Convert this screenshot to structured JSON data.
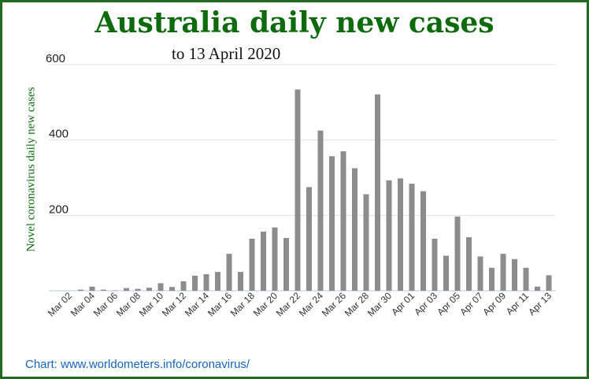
{
  "chart_data": {
    "type": "bar",
    "title": "Australia daily new cases",
    "subtitle": "to 13 April 2020",
    "xlabel": "",
    "ylabel": "Novel coronavirus daily new cases",
    "ylim": [
      0,
      600
    ],
    "yticks": [
      200,
      400,
      600
    ],
    "grid": true,
    "bar_color": "#8c8c8c",
    "categories": [
      "Mar 02",
      "Mar 03",
      "Mar 04",
      "Mar 05",
      "Mar 06",
      "Mar 07",
      "Mar 08",
      "Mar 09",
      "Mar 10",
      "Mar 11",
      "Mar 12",
      "Mar 13",
      "Mar 14",
      "Mar 15",
      "Mar 16",
      "Mar 17",
      "Mar 18",
      "Mar 19",
      "Mar 20",
      "Mar 21",
      "Mar 22",
      "Mar 23",
      "Mar 24",
      "Mar 25",
      "Mar 26",
      "Mar 27",
      "Mar 28",
      "Mar 29",
      "Mar 30",
      "Mar 31",
      "Apr 01",
      "Apr 02",
      "Apr 03",
      "Apr 04",
      "Apr 05",
      "Apr 06",
      "Apr 07",
      "Apr 08",
      "Apr 09",
      "Apr 10",
      "Apr 11",
      "Apr 12",
      "Apr 13"
    ],
    "tick_labels": [
      "Mar 02",
      "Mar 04",
      "Mar 06",
      "Mar 08",
      "Mar 10",
      "Mar 12",
      "Mar 14",
      "Mar 16",
      "Mar 18",
      "Mar 20",
      "Mar 22",
      "Mar 24",
      "Mar 26",
      "Mar 28",
      "Mar 30",
      "Apr 01",
      "Apr 03",
      "Apr 05",
      "Apr 07",
      "Apr 09",
      "Apr 11",
      "Apr 13"
    ],
    "values": [
      0,
      3,
      11,
      3,
      1,
      7,
      5,
      8,
      20,
      10,
      25,
      40,
      44,
      50,
      98,
      50,
      138,
      157,
      168,
      140,
      534,
      275,
      425,
      357,
      370,
      325,
      256,
      521,
      293,
      298,
      284,
      264,
      138,
      93,
      197,
      142,
      91,
      61,
      98,
      84,
      61,
      11,
      41
    ]
  },
  "credit": "Chart: www.worldometers.info/coronavirus/"
}
